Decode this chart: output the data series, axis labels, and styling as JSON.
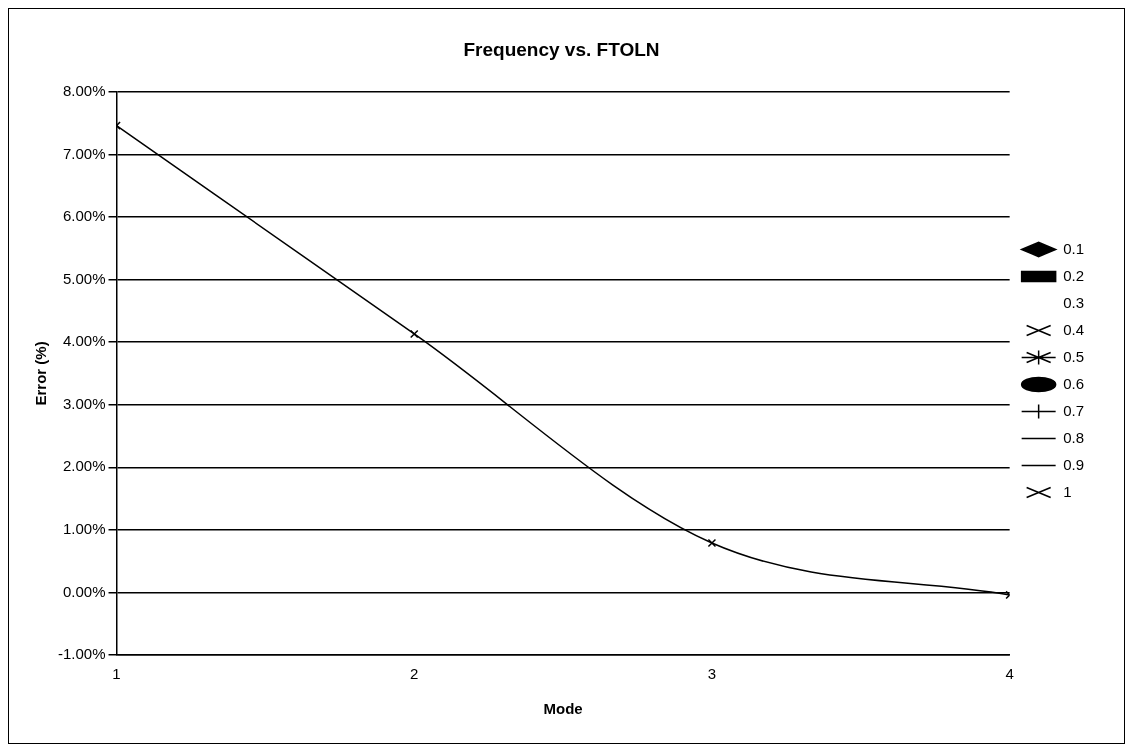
{
  "chart_data": {
    "type": "line",
    "title": "Frequency vs. FTOLN",
    "xlabel": "Mode",
    "ylabel": "Error (%)",
    "x": [
      1,
      2,
      3,
      4
    ],
    "series": [
      {
        "name": "0.1",
        "color": "#000000",
        "marker": "diamond",
        "values": [
          null,
          null,
          null,
          null
        ]
      },
      {
        "name": "0.2",
        "color": "#000000",
        "marker": "square",
        "values": [
          null,
          null,
          null,
          null
        ]
      },
      {
        "name": "0.3",
        "values": [
          null,
          null,
          null,
          null
        ]
      },
      {
        "name": "0.4",
        "color": "#000000",
        "marker": "cross",
        "values": [
          null,
          null,
          null,
          null
        ]
      },
      {
        "name": "0.5",
        "color": "#000000",
        "marker": "star",
        "values": [
          null,
          null,
          null,
          null
        ]
      },
      {
        "name": "0.6",
        "color": "#000000",
        "marker": "circle",
        "values": [
          null,
          null,
          null,
          null
        ]
      },
      {
        "name": "0.7",
        "color": "#000000",
        "marker": "plus",
        "values": [
          null,
          null,
          null,
          null
        ]
      },
      {
        "name": "0.8",
        "color": "#000000",
        "marker": "none",
        "values": [
          null,
          null,
          null,
          null
        ]
      },
      {
        "name": "0.9",
        "color": "#000000",
        "marker": "none",
        "values": [
          null,
          null,
          null,
          null
        ]
      },
      {
        "name": "1",
        "color": "#000000",
        "marker": "cross",
        "values": [
          7.46,
          4.13,
          0.79,
          -0.04
        ]
      }
    ],
    "xlim": [
      1,
      4
    ],
    "xticks": [
      1,
      2,
      3,
      4
    ],
    "ylim": [
      -1,
      8
    ],
    "yticks": [
      {
        "value": -1,
        "label": "-1.00%"
      },
      {
        "value": 0,
        "label": "0.00%"
      },
      {
        "value": 1,
        "label": "1.00%"
      },
      {
        "value": 2,
        "label": "2.00%"
      },
      {
        "value": 3,
        "label": "3.00%"
      },
      {
        "value": 4,
        "label": "4.00%"
      },
      {
        "value": 5,
        "label": "5.00%"
      },
      {
        "value": 6,
        "label": "6.00%"
      },
      {
        "value": 7,
        "label": "7.00%"
      },
      {
        "value": 8,
        "label": "8.00%"
      }
    ],
    "grid": "y",
    "legend": "right"
  }
}
